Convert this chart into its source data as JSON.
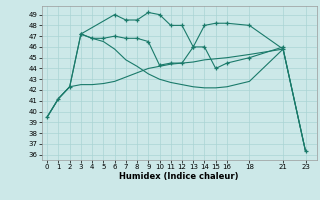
{
  "xlabel": "Humidex (Indice chaleur)",
  "bg_color": "#cce8e8",
  "grid_color": "#aad4d4",
  "line_color": "#1a7a6a",
  "ylim": [
    35.5,
    49.8
  ],
  "xlim": [
    -0.5,
    24.0
  ],
  "yticks": [
    36,
    37,
    38,
    39,
    40,
    41,
    42,
    43,
    44,
    45,
    46,
    47,
    48,
    49
  ],
  "xticks": [
    0,
    1,
    2,
    3,
    4,
    5,
    6,
    7,
    8,
    9,
    10,
    11,
    12,
    13,
    14,
    15,
    16,
    18,
    21,
    23
  ],
  "lines": [
    {
      "x": [
        0,
        1,
        2,
        3,
        6,
        7,
        8,
        9,
        10,
        11,
        12,
        13,
        14,
        15,
        16,
        18,
        21,
        23
      ],
      "y": [
        39.5,
        41.2,
        42.3,
        47.2,
        49.0,
        48.5,
        48.5,
        49.2,
        49.0,
        48.0,
        48.0,
        46.0,
        48.0,
        48.2,
        48.2,
        48.0,
        45.8,
        36.3
      ],
      "marker": true
    },
    {
      "x": [
        0,
        1,
        2,
        3,
        4,
        5,
        6,
        7,
        8,
        9,
        10,
        11,
        12,
        13,
        14,
        15,
        16,
        18,
        21,
        23
      ],
      "y": [
        39.5,
        41.2,
        42.3,
        47.2,
        46.8,
        46.5,
        45.8,
        44.8,
        44.2,
        43.5,
        43.0,
        42.7,
        42.5,
        42.3,
        42.2,
        42.2,
        42.3,
        42.8,
        45.8,
        36.3
      ],
      "marker": false
    },
    {
      "x": [
        0,
        1,
        2,
        3,
        4,
        5,
        6,
        7,
        8,
        9,
        10,
        11,
        12,
        13,
        14,
        15,
        16,
        18,
        21,
        23
      ],
      "y": [
        39.5,
        41.2,
        42.3,
        42.5,
        42.5,
        42.6,
        42.8,
        43.2,
        43.6,
        44.0,
        44.2,
        44.4,
        44.5,
        44.6,
        44.8,
        44.9,
        45.0,
        45.3,
        45.8,
        36.3
      ],
      "marker": false
    },
    {
      "x": [
        3,
        4,
        5,
        6,
        7,
        8,
        9,
        10,
        11,
        12,
        13,
        14,
        15,
        16,
        18,
        21
      ],
      "y": [
        47.2,
        46.8,
        46.8,
        47.0,
        46.8,
        46.8,
        46.5,
        44.3,
        44.5,
        44.5,
        46.0,
        46.0,
        44.0,
        44.5,
        45.0,
        46.0
      ],
      "marker": true
    }
  ]
}
